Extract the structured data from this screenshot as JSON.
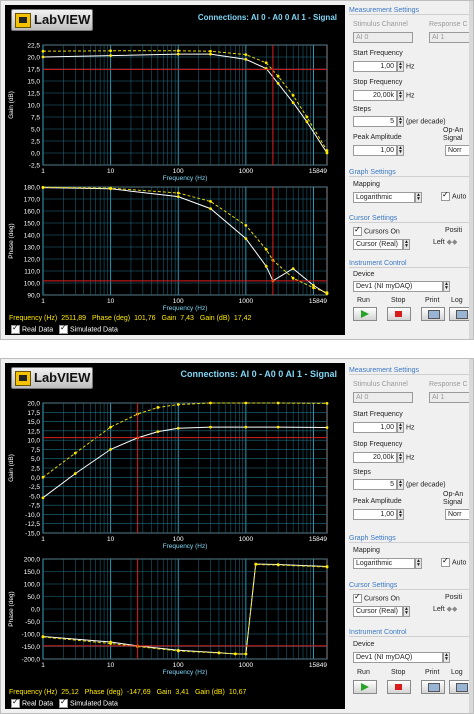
{
  "panels": [
    {
      "app_name": "LabVIEW",
      "connections": "Connections: AI 0 - A0 0   AI 1 - Signal",
      "gain_chart": {
        "ylabel": "Gain (dB)",
        "xlabel": "Frequency (Hz)",
        "yticks": [
          "22,5",
          "20,0",
          "17,5",
          "15,0",
          "12,5",
          "10,0",
          "7,5",
          "5,0",
          "2,5",
          "0,0",
          "-2,5"
        ],
        "xticks": [
          "1",
          "10",
          "100",
          "1000",
          "15849"
        ]
      },
      "phase_chart": {
        "ylabel": "Phase (deg)",
        "xlabel": "Frequency (Hz)",
        "yticks": [
          "180,0",
          "170,0",
          "160,0",
          "150,0",
          "140,0",
          "130,0",
          "120,0",
          "110,0",
          "100,0",
          "90,0"
        ],
        "xticks": [
          "1",
          "10",
          "100",
          "1000",
          "15849"
        ]
      },
      "readout": {
        "freq_label": "Frequency (Hz)",
        "freq": "2511,89",
        "phase_label": "Phase (deg)",
        "phase": "101,76",
        "gain_label": "Gain",
        "gain": "7,43",
        "gaindb_label": "Gain (dB)",
        "gaindb": "17,42"
      },
      "legend": {
        "real": "Real Data",
        "sim": "Simulated Data"
      },
      "settings": {
        "measurement": "Measurement Settings",
        "stim_label": "Stimulus Channel",
        "stim_value": "AI 0",
        "resp_label": "Response C",
        "resp_value": "AI 1",
        "start_label": "Start Frequency",
        "start_value": "1,00",
        "start_unit": "Hz",
        "stop_label": "Stop Frequency",
        "stop_value": "20,00k",
        "stop_unit": "Hz",
        "steps_label": "Steps",
        "steps_value": "5",
        "steps_unit": "(per decade)",
        "peak_label": "Peak Amplitude",
        "peak_value": "1,00",
        "opamp_label": "Op-An Signal",
        "opamp_value": "Norr",
        "graph": "Graph Settings",
        "mapping_label": "Mapping",
        "mapping_value": "Logarithmic",
        "auto_label": "Auto",
        "cursor": "Cursor Settings",
        "cursors_on": "Cursors On",
        "cursor_sel": "Cursor (Real)",
        "posit": "Positi",
        "left": "Left",
        "instrument": "Instrument Control",
        "device_label": "Device",
        "device_value": "Dev1 (NI myDAQ)",
        "run": "Run",
        "stop": "Stop",
        "print": "Print",
        "log": "Log"
      }
    },
    {
      "app_name": "LabVIEW",
      "connections": "Connections: AI 0 - A0 0   AI 1 - Signal",
      "gain_chart": {
        "ylabel": "Gain (dB)",
        "xlabel": "Frequency (Hz)",
        "yticks": [
          "20,0",
          "17,5",
          "15,0",
          "12,5",
          "10,0",
          "7,5",
          "5,0",
          "2,5",
          "0,0",
          "-2,5",
          "-5,0",
          "-7,5",
          "-10,0",
          "-12,5",
          "-15,0"
        ],
        "xticks": [
          "1",
          "10",
          "100",
          "1000",
          "15849"
        ]
      },
      "phase_chart": {
        "ylabel": "Phase (deg)",
        "xlabel": "Frequency (Hz)",
        "yticks": [
          "200,0",
          "150,0",
          "100,0",
          "50,0",
          "0,0",
          "-50,0",
          "-100,0",
          "-150,0",
          "-200,0"
        ],
        "xticks": [
          "1",
          "10",
          "100",
          "1000",
          "15849"
        ]
      },
      "readout": {
        "freq_label": "Frequency (Hz)",
        "freq": "25,12",
        "phase_label": "Phase (deg)",
        "phase": "-147,69",
        "gain_label": "Gain",
        "gain": "3,41",
        "gaindb_label": "Gain (dB)",
        "gaindb": "10,67"
      },
      "legend": {
        "real": "Real Data",
        "sim": "Simulated Data"
      },
      "settings": {
        "measurement": "Measurement Settings",
        "stim_label": "Stimulus Channel",
        "stim_value": "AI 0",
        "resp_label": "Response C",
        "resp_value": "AI 1",
        "start_label": "Start Frequency",
        "start_value": "1,00",
        "start_unit": "Hz",
        "stop_label": "Stop Frequency",
        "stop_value": "20,00k",
        "stop_unit": "Hz",
        "steps_label": "Steps",
        "steps_value": "5",
        "steps_unit": "(per decade)",
        "peak_label": "Peak Amplitude",
        "peak_value": "1,00",
        "opamp_label": "Op-An Signal",
        "opamp_value": "Norr",
        "graph": "Graph Settings",
        "mapping_label": "Mapping",
        "mapping_value": "Logarithmic",
        "auto_label": "Auto",
        "cursor": "Cursor Settings",
        "cursors_on": "Cursors On",
        "cursor_sel": "Cursor (Real)",
        "posit": "Positi",
        "left": "Left",
        "instrument": "Instrument Control",
        "device_label": "Device",
        "device_value": "Dev1 (NI myDAQ)",
        "run": "Run",
        "stop": "Stop",
        "print": "Print",
        "log": "Log"
      }
    }
  ],
  "chart_data": [
    {
      "type": "line",
      "title": "",
      "xlabel": "Frequency (Hz)",
      "ylabel": "Gain (dB)",
      "xscale": "log",
      "xlim": [
        1,
        15849
      ],
      "ylim": [
        -2.5,
        22.5
      ],
      "grid": true,
      "x": [
        1,
        10,
        100,
        300,
        1000,
        2000,
        3000,
        5000,
        8000,
        15849
      ],
      "series": [
        {
          "name": "Real Data",
          "values": [
            20.0,
            20.3,
            20.6,
            20.6,
            19.5,
            17.6,
            14.5,
            10.5,
            6.5,
            0.0
          ]
        },
        {
          "name": "Simulated Data",
          "values": [
            21.2,
            21.3,
            21.3,
            21.2,
            20.5,
            18.8,
            16.0,
            12.0,
            7.5,
            0.5
          ]
        }
      ],
      "cursors": {
        "x": 2511.89,
        "y": 17.42
      }
    },
    {
      "type": "line",
      "title": "",
      "xlabel": "Frequency (Hz)",
      "ylabel": "Phase (deg)",
      "xscale": "log",
      "xlim": [
        1,
        15849
      ],
      "ylim": [
        90,
        180
      ],
      "grid": true,
      "x": [
        1,
        10,
        100,
        300,
        1000,
        2000,
        2512,
        5000,
        10000,
        15849
      ],
      "series": [
        {
          "name": "Real Data",
          "values": [
            179.5,
            178.5,
            172,
            162,
            137,
            114,
            101.8,
            112,
            98,
            91
          ]
        },
        {
          "name": "Simulated Data",
          "values": [
            179.8,
            179,
            175,
            168,
            148,
            128,
            119,
            104,
            96,
            92
          ]
        }
      ],
      "cursors": {
        "x": 2511.89,
        "y": 101.76
      }
    },
    {
      "type": "line",
      "title": "",
      "xlabel": "Frequency (Hz)",
      "ylabel": "Gain (dB)",
      "xscale": "log",
      "xlim": [
        1,
        15849
      ],
      "ylim": [
        -15,
        20
      ],
      "grid": true,
      "x": [
        1,
        3,
        10,
        25,
        50,
        100,
        300,
        1000,
        3000,
        15849
      ],
      "series": [
        {
          "name": "Real Data",
          "values": [
            -5.5,
            1.0,
            7.5,
            10.6,
            12.3,
            13.2,
            13.5,
            13.5,
            13.5,
            13.4
          ]
        },
        {
          "name": "Simulated Data",
          "values": [
            0.0,
            6.5,
            13.5,
            17.0,
            18.8,
            19.6,
            20.0,
            20.0,
            20.0,
            19.9
          ]
        }
      ],
      "cursors": {
        "x": 25.12,
        "y": 10.67
      }
    },
    {
      "type": "line",
      "title": "",
      "xlabel": "Frequency (Hz)",
      "ylabel": "Phase (deg)",
      "xscale": "log",
      "xlim": [
        1,
        15849
      ],
      "ylim": [
        -200,
        200
      ],
      "grid": true,
      "x": [
        1,
        10,
        25,
        100,
        400,
        700,
        1000,
        1400,
        3000,
        15849
      ],
      "series": [
        {
          "name": "Real Data",
          "values": [
            -110,
            -132,
            -147.69,
            -165,
            -175,
            -180,
            -180,
            180,
            178,
            170
          ]
        },
        {
          "name": "Simulated Data",
          "values": [
            -112,
            -138,
            -150,
            -168,
            -176,
            -179,
            -180,
            178,
            176,
            168
          ]
        }
      ],
      "cursors": {
        "x": 25.12,
        "y": -147.69
      }
    }
  ]
}
